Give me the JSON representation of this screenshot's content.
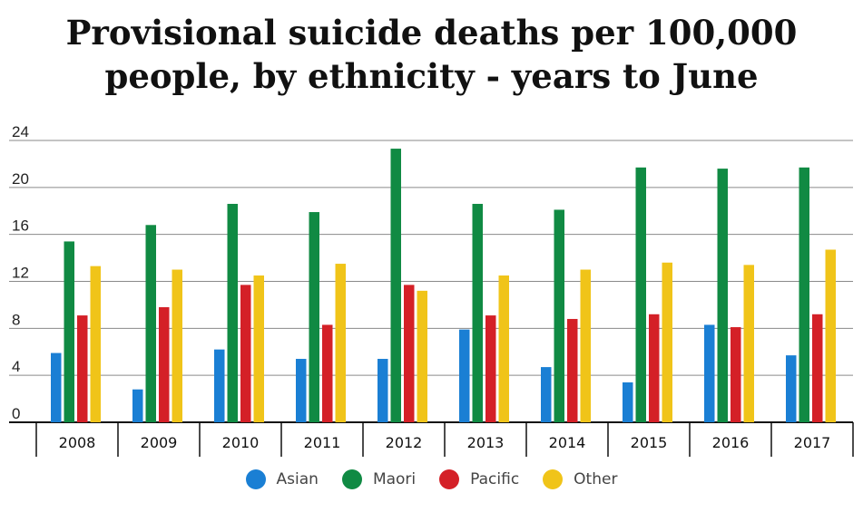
{
  "chart_data": {
    "type": "bar",
    "title_lines": [
      "Provisional suicide deaths per 100,000",
      "people, by ethnicity - years to June"
    ],
    "categories": [
      "2008",
      "2009",
      "2010",
      "2011",
      "2012",
      "2013",
      "2014",
      "2015",
      "2016",
      "2017"
    ],
    "series": [
      {
        "name": "Asian",
        "color": "#1a7fd4",
        "values": [
          5.9,
          2.8,
          6.2,
          5.4,
          5.4,
          7.9,
          4.7,
          3.4,
          8.3,
          5.7
        ]
      },
      {
        "name": "Maori",
        "color": "#108a43",
        "values": [
          15.4,
          16.8,
          18.6,
          17.9,
          23.3,
          18.6,
          18.1,
          21.7,
          21.6,
          21.7
        ]
      },
      {
        "name": "Pacific",
        "color": "#d42027",
        "values": [
          9.1,
          9.8,
          11.7,
          8.3,
          11.7,
          9.1,
          8.8,
          9.2,
          8.1,
          9.2
        ]
      },
      {
        "name": "Other",
        "color": "#f0c419",
        "values": [
          13.3,
          13.0,
          12.5,
          13.5,
          11.2,
          12.5,
          13.0,
          13.6,
          13.4,
          14.7
        ]
      }
    ],
    "yticks": [
      "0",
      "4",
      "8",
      "12",
      "16",
      "20",
      "24"
    ],
    "ylim": [
      0,
      24
    ],
    "xlabel": "",
    "ylabel": "",
    "grid": true,
    "legend": "bottom"
  }
}
